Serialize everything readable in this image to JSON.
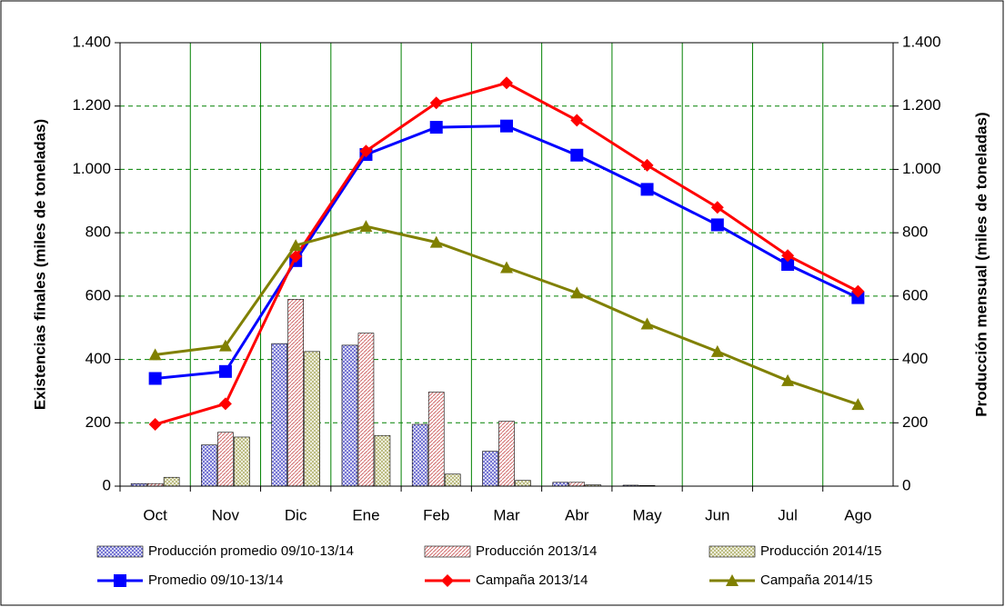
{
  "chart_data": {
    "type": "bar",
    "y_label": "Existencias finales (miles de toneladas)",
    "y2_label": "Producción mensual (miles de toneladas)",
    "categories": [
      "Oct",
      "Nov",
      "Dic",
      "Ene",
      "Feb",
      "Mar",
      "Abr",
      "May",
      "Jun",
      "Jul",
      "Ago"
    ],
    "ylim": [
      0,
      1400
    ],
    "yticks": [
      0,
      200,
      400,
      600,
      800,
      {
        "value": 1000,
        "label": "1.000"
      },
      {
        "value": 1200,
        "label": "1.200"
      },
      {
        "value": 1400,
        "label": "1.400"
      }
    ],
    "y2lim": [
      0,
      1400
    ],
    "y2ticks": [
      0,
      200,
      400,
      600,
      800,
      {
        "value": 1000,
        "label": "1.000"
      },
      {
        "value": 1200,
        "label": "1.200"
      },
      {
        "value": 1400,
        "label": "1.400"
      }
    ],
    "grid": true,
    "series": [
      {
        "name": "Producción promedio 09/10-13/14",
        "type": "bar",
        "axis": "y2",
        "color": "#6a6ad0",
        "values": [
          8,
          130,
          450,
          445,
          195,
          110,
          12,
          3,
          0,
          0,
          0
        ]
      },
      {
        "name": "Producción 2013/14",
        "type": "bar",
        "axis": "y2",
        "color": "#d06a6a",
        "values": [
          8,
          170,
          590,
          483,
          297,
          205,
          12,
          2,
          0,
          0,
          0
        ]
      },
      {
        "name": "Producción 2014/15",
        "type": "bar",
        "axis": "y2",
        "color": "#b8b878",
        "values": [
          28,
          155,
          425,
          160,
          38,
          18,
          4,
          0,
          0,
          0,
          0
        ]
      },
      {
        "name": "Promedio 09/10-13/14",
        "type": "line",
        "marker": "square",
        "color": "#0000ff",
        "values": [
          340,
          362,
          712,
          1047,
          1133,
          1137,
          1045,
          937,
          825,
          700,
          595
        ]
      },
      {
        "name": "Campaña 2013/14",
        "type": "line",
        "marker": "diamond",
        "color": "#ff0000",
        "values": [
          195,
          260,
          725,
          1058,
          1210,
          1273,
          1155,
          1013,
          880,
          728,
          615
        ]
      },
      {
        "name": "Campaña 2014/15",
        "type": "line",
        "marker": "triangle",
        "color": "#808000",
        "values": [
          415,
          443,
          760,
          820,
          770,
          690,
          610,
          512,
          425,
          333,
          258
        ]
      }
    ]
  }
}
